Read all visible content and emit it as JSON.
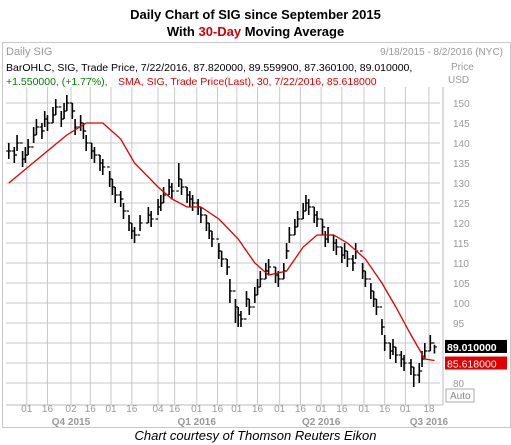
{
  "title": {
    "line1": "Daily Chart of SIG since September 2015",
    "line2_pre": "With ",
    "line2_highlight": "30-Day",
    "line2_post": " Moving Average"
  },
  "caption": "Chart courtesy of Thomson Reuters Eikon",
  "colors": {
    "price": "#000000",
    "sma": "#e00000",
    "legend_green": "#008000",
    "grid": "#c9c9c9",
    "label_gray": "#999999",
    "last_price_bg": "#000000",
    "sma_tag_bg": "#e00000"
  },
  "chart_data": {
    "type": "line",
    "header_left": "Daily SIG",
    "header_right": "9/18/2015 - 8/2/2016 (NYC)",
    "legend_ohlc": "BarOHLC, SIG, Trade Price, 7/22/2016, 87.820000, 89.559900, 87.360100, 89.010000,",
    "legend_change": "+1.550000, (+1.77%),",
    "legend_sma": "SMA, SIG, Trade Price(Last), 30, 7/22/2016, 85.618000",
    "y_axis_label": "Price",
    "y_axis_unit": "USD",
    "yticks": [
      150,
      145,
      140,
      135,
      130,
      125,
      120,
      115,
      110,
      105,
      100,
      95,
      90,
      85,
      80
    ],
    "ylim": [
      76,
      153
    ],
    "last_price_label": "89.010000",
    "sma_label": "85.618000",
    "auto_label": "Auto",
    "x_ticks": [
      "01",
      "16",
      "02",
      "16",
      "01",
      "16",
      "04",
      "16",
      "01",
      "16",
      "01",
      "16",
      "01",
      "16",
      "01",
      "16",
      "01",
      "16",
      "01",
      "18"
    ],
    "x_periods": [
      "Q4 2015",
      "Q1 2016",
      "Q2 2016",
      "Q3 2016"
    ],
    "x_tick_months": [
      "2015-10-01",
      "2015-10-16",
      "2015-11-02",
      "2015-11-16",
      "2015-12-01",
      "2015-12-16",
      "2016-01-04",
      "2016-01-16",
      "2016-02-01",
      "2016-02-16",
      "2016-03-01",
      "2016-03-16",
      "2016-04-01",
      "2016-04-16",
      "2016-05-01",
      "2016-05-16",
      "2016-06-01",
      "2016-06-16",
      "2016-07-01",
      "2016-07-18"
    ],
    "series": [
      {
        "name": "SIG",
        "kind": "ohlc",
        "x": [
          "2015-09-18",
          "2015-09-22",
          "2015-09-24",
          "2015-09-28",
          "2015-09-30",
          "2015-10-02",
          "2015-10-06",
          "2015-10-08",
          "2015-10-12",
          "2015-10-14",
          "2015-10-16",
          "2015-10-20",
          "2015-10-22",
          "2015-10-26",
          "2015-10-28",
          "2015-10-30",
          "2015-11-03",
          "2015-11-05",
          "2015-11-09",
          "2015-11-11",
          "2015-11-13",
          "2015-11-17",
          "2015-11-19",
          "2015-11-23",
          "2015-11-25",
          "2015-11-30",
          "2015-12-02",
          "2015-12-04",
          "2015-12-08",
          "2015-12-10",
          "2015-12-14",
          "2015-12-16",
          "2015-12-18",
          "2015-12-22",
          "2015-12-28",
          "2015-12-30",
          "2016-01-04",
          "2016-01-06",
          "2016-01-08",
          "2016-01-12",
          "2016-01-14",
          "2016-01-19",
          "2016-01-21",
          "2016-01-25",
          "2016-01-27",
          "2016-01-29",
          "2016-02-02",
          "2016-02-04",
          "2016-02-08",
          "2016-02-10",
          "2016-02-12",
          "2016-02-17",
          "2016-02-19",
          "2016-02-23",
          "2016-02-25",
          "2016-02-29",
          "2016-03-02",
          "2016-03-04",
          "2016-03-08",
          "2016-03-10",
          "2016-03-14",
          "2016-03-16",
          "2016-03-18",
          "2016-03-22",
          "2016-03-24",
          "2016-03-29",
          "2016-03-31",
          "2016-04-04",
          "2016-04-06",
          "2016-04-08",
          "2016-04-12",
          "2016-04-14",
          "2016-04-18",
          "2016-04-20",
          "2016-04-22",
          "2016-04-26",
          "2016-04-28",
          "2016-05-02",
          "2016-05-04",
          "2016-05-06",
          "2016-05-10",
          "2016-05-12",
          "2016-05-16",
          "2016-05-18",
          "2016-05-20",
          "2016-05-24",
          "2016-05-26",
          "2016-05-31",
          "2016-06-02",
          "2016-06-06",
          "2016-06-08",
          "2016-06-10",
          "2016-06-14",
          "2016-06-16",
          "2016-06-20",
          "2016-06-22",
          "2016-06-24",
          "2016-06-28",
          "2016-06-30",
          "2016-07-05",
          "2016-07-07",
          "2016-07-11",
          "2016-07-13",
          "2016-07-15",
          "2016-07-19",
          "2016-07-22"
        ],
        "close": [
          138,
          137,
          140,
          136,
          137,
          139,
          142,
          144,
          143,
          146,
          145,
          147,
          149,
          146,
          148,
          150,
          148,
          144,
          145,
          143,
          140,
          138,
          137,
          135,
          134,
          131,
          129,
          127,
          126,
          123,
          120,
          118,
          117,
          120,
          122,
          121,
          124,
          125,
          127,
          129,
          128,
          131,
          129,
          127,
          126,
          125,
          124,
          122,
          120,
          118,
          116,
          113,
          111,
          109,
          103,
          99,
          97,
          96,
          101,
          99,
          102,
          104,
          106,
          108,
          109,
          107,
          106,
          108,
          113,
          117,
          119,
          121,
          123,
          125,
          124,
          122,
          121,
          119,
          116,
          117,
          115,
          114,
          112,
          113,
          111,
          110,
          113,
          108,
          106,
          103,
          101,
          99,
          94,
          90,
          88,
          89,
          87,
          86,
          85,
          84,
          82,
          83,
          86,
          88,
          90,
          89.01
        ],
        "high": [
          140,
          139,
          142,
          138,
          139,
          141,
          144,
          146,
          145,
          148,
          147,
          149,
          151,
          148,
          150,
          152,
          150,
          146,
          147,
          145,
          142,
          140,
          139,
          137,
          136,
          133,
          131,
          129,
          128,
          125,
          122,
          120,
          119,
          122,
          124,
          123,
          126,
          127,
          129,
          131,
          130,
          135,
          131,
          129,
          128,
          127,
          126,
          124,
          122,
          120,
          118,
          115,
          113,
          111,
          106,
          101,
          99,
          98,
          103,
          101,
          104,
          106,
          108,
          110,
          111,
          109,
          108,
          110,
          115,
          119,
          121,
          123,
          125,
          127,
          126,
          124,
          123,
          121,
          118,
          119,
          117,
          116,
          114,
          115,
          113,
          112,
          115,
          110,
          108,
          105,
          103,
          101,
          96,
          92,
          90,
          91,
          89,
          88,
          87,
          86,
          84,
          85,
          88,
          90,
          92,
          89.56
        ],
        "low": [
          136,
          135,
          138,
          134,
          135,
          137,
          140,
          142,
          141,
          144,
          143,
          145,
          147,
          144,
          146,
          148,
          146,
          142,
          143,
          141,
          138,
          136,
          135,
          133,
          132,
          129,
          127,
          125,
          124,
          121,
          118,
          116,
          115,
          118,
          120,
          119,
          122,
          123,
          125,
          127,
          126,
          129,
          127,
          125,
          124,
          123,
          122,
          120,
          118,
          116,
          114,
          111,
          109,
          107,
          100,
          95,
          94,
          94,
          99,
          97,
          100,
          102,
          104,
          106,
          107,
          105,
          104,
          106,
          111,
          115,
          117,
          119,
          121,
          123,
          122,
          120,
          119,
          117,
          114,
          115,
          113,
          112,
          110,
          111,
          109,
          108,
          111,
          106,
          104,
          101,
          99,
          97,
          92,
          88,
          86,
          87,
          85,
          84,
          83,
          82,
          79,
          80,
          84,
          86,
          88,
          87.36
        ],
        "color": "#000000"
      },
      {
        "name": "SMA, SIG, Trade Price(Last), 30",
        "kind": "line",
        "x": [
          "2015-09-18",
          "2015-10-02",
          "2015-10-16",
          "2015-10-30",
          "2015-11-13",
          "2015-11-25",
          "2015-12-08",
          "2015-12-18",
          "2016-01-04",
          "2016-01-14",
          "2016-01-25",
          "2016-02-04",
          "2016-02-17",
          "2016-03-02",
          "2016-03-14",
          "2016-03-24",
          "2016-04-06",
          "2016-04-18",
          "2016-04-28",
          "2016-05-10",
          "2016-05-20",
          "2016-06-02",
          "2016-06-14",
          "2016-06-24",
          "2016-07-05",
          "2016-07-15",
          "2016-07-22"
        ],
        "values": [
          130,
          134,
          138,
          142,
          145,
          145,
          141,
          135,
          129,
          126,
          124,
          124,
          121,
          116,
          110,
          107,
          108,
          114,
          117,
          117,
          115,
          111,
          105,
          99,
          92,
          86,
          85.618
        ],
        "color": "#e00000"
      }
    ],
    "grid": true
  }
}
